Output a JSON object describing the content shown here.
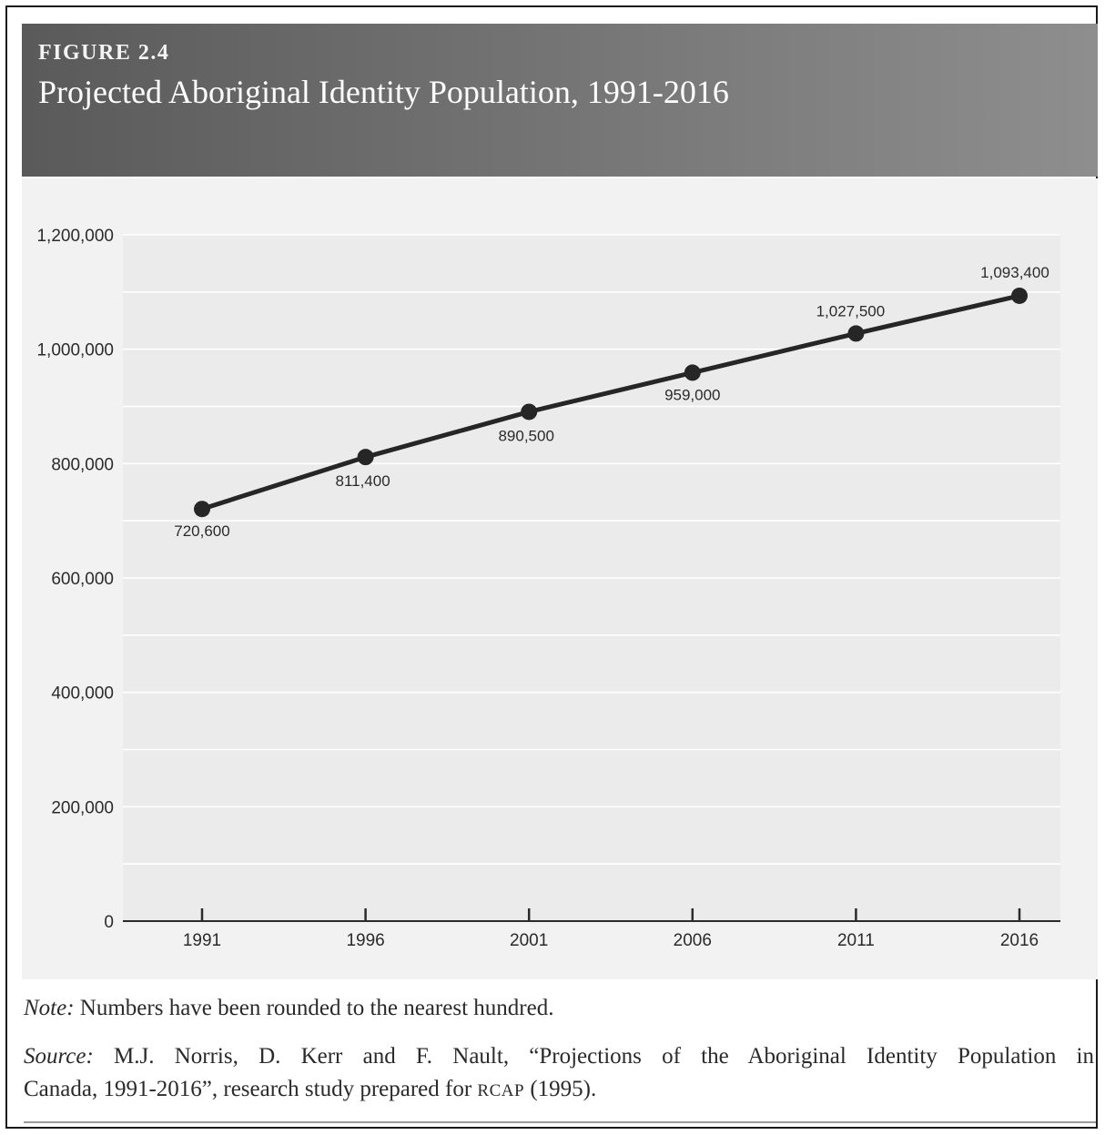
{
  "figure": {
    "label": "FIGURE 2.4",
    "title": "Projected Aboriginal Identity Population, 1991-2016"
  },
  "chart_data": {
    "type": "line",
    "title": "Projected Aboriginal Identity Population, 1991-2016",
    "xlabel": "",
    "ylabel": "",
    "categories": [
      "1991",
      "1996",
      "2001",
      "2006",
      "2011",
      "2016"
    ],
    "series": [
      {
        "values": [
          720600,
          811400,
          890500,
          959000,
          1027500,
          1093400
        ],
        "labels": [
          "720,600",
          "811,400",
          "890,500",
          "959,000",
          "1,027,500",
          "1,093,400"
        ]
      }
    ],
    "ylim": [
      0,
      1200000
    ],
    "yticks": [
      0,
      200000,
      400000,
      600000,
      800000,
      1000000,
      1200000
    ],
    "ytick_labels": [
      "0",
      "200,000",
      "400,000",
      "600,000",
      "800,000",
      "1,000,000",
      "1,200,000"
    ],
    "grid": true,
    "colors": {
      "line": "#262626",
      "grid": "#ffffff",
      "background": "#f2f2f2"
    }
  },
  "note": {
    "prefix": "Note:",
    "text": "Numbers have been rounded to the nearest hundred."
  },
  "source": {
    "prefix": "Source:",
    "text1": "M.J. Norris, D. Kerr and F. Nault, “Projections of the Aboriginal Identity Population in",
    "text2": "Canada, 1991-2016”, research study prepared for",
    "smallcaps": "RCAP",
    "text3": "(1995)."
  }
}
